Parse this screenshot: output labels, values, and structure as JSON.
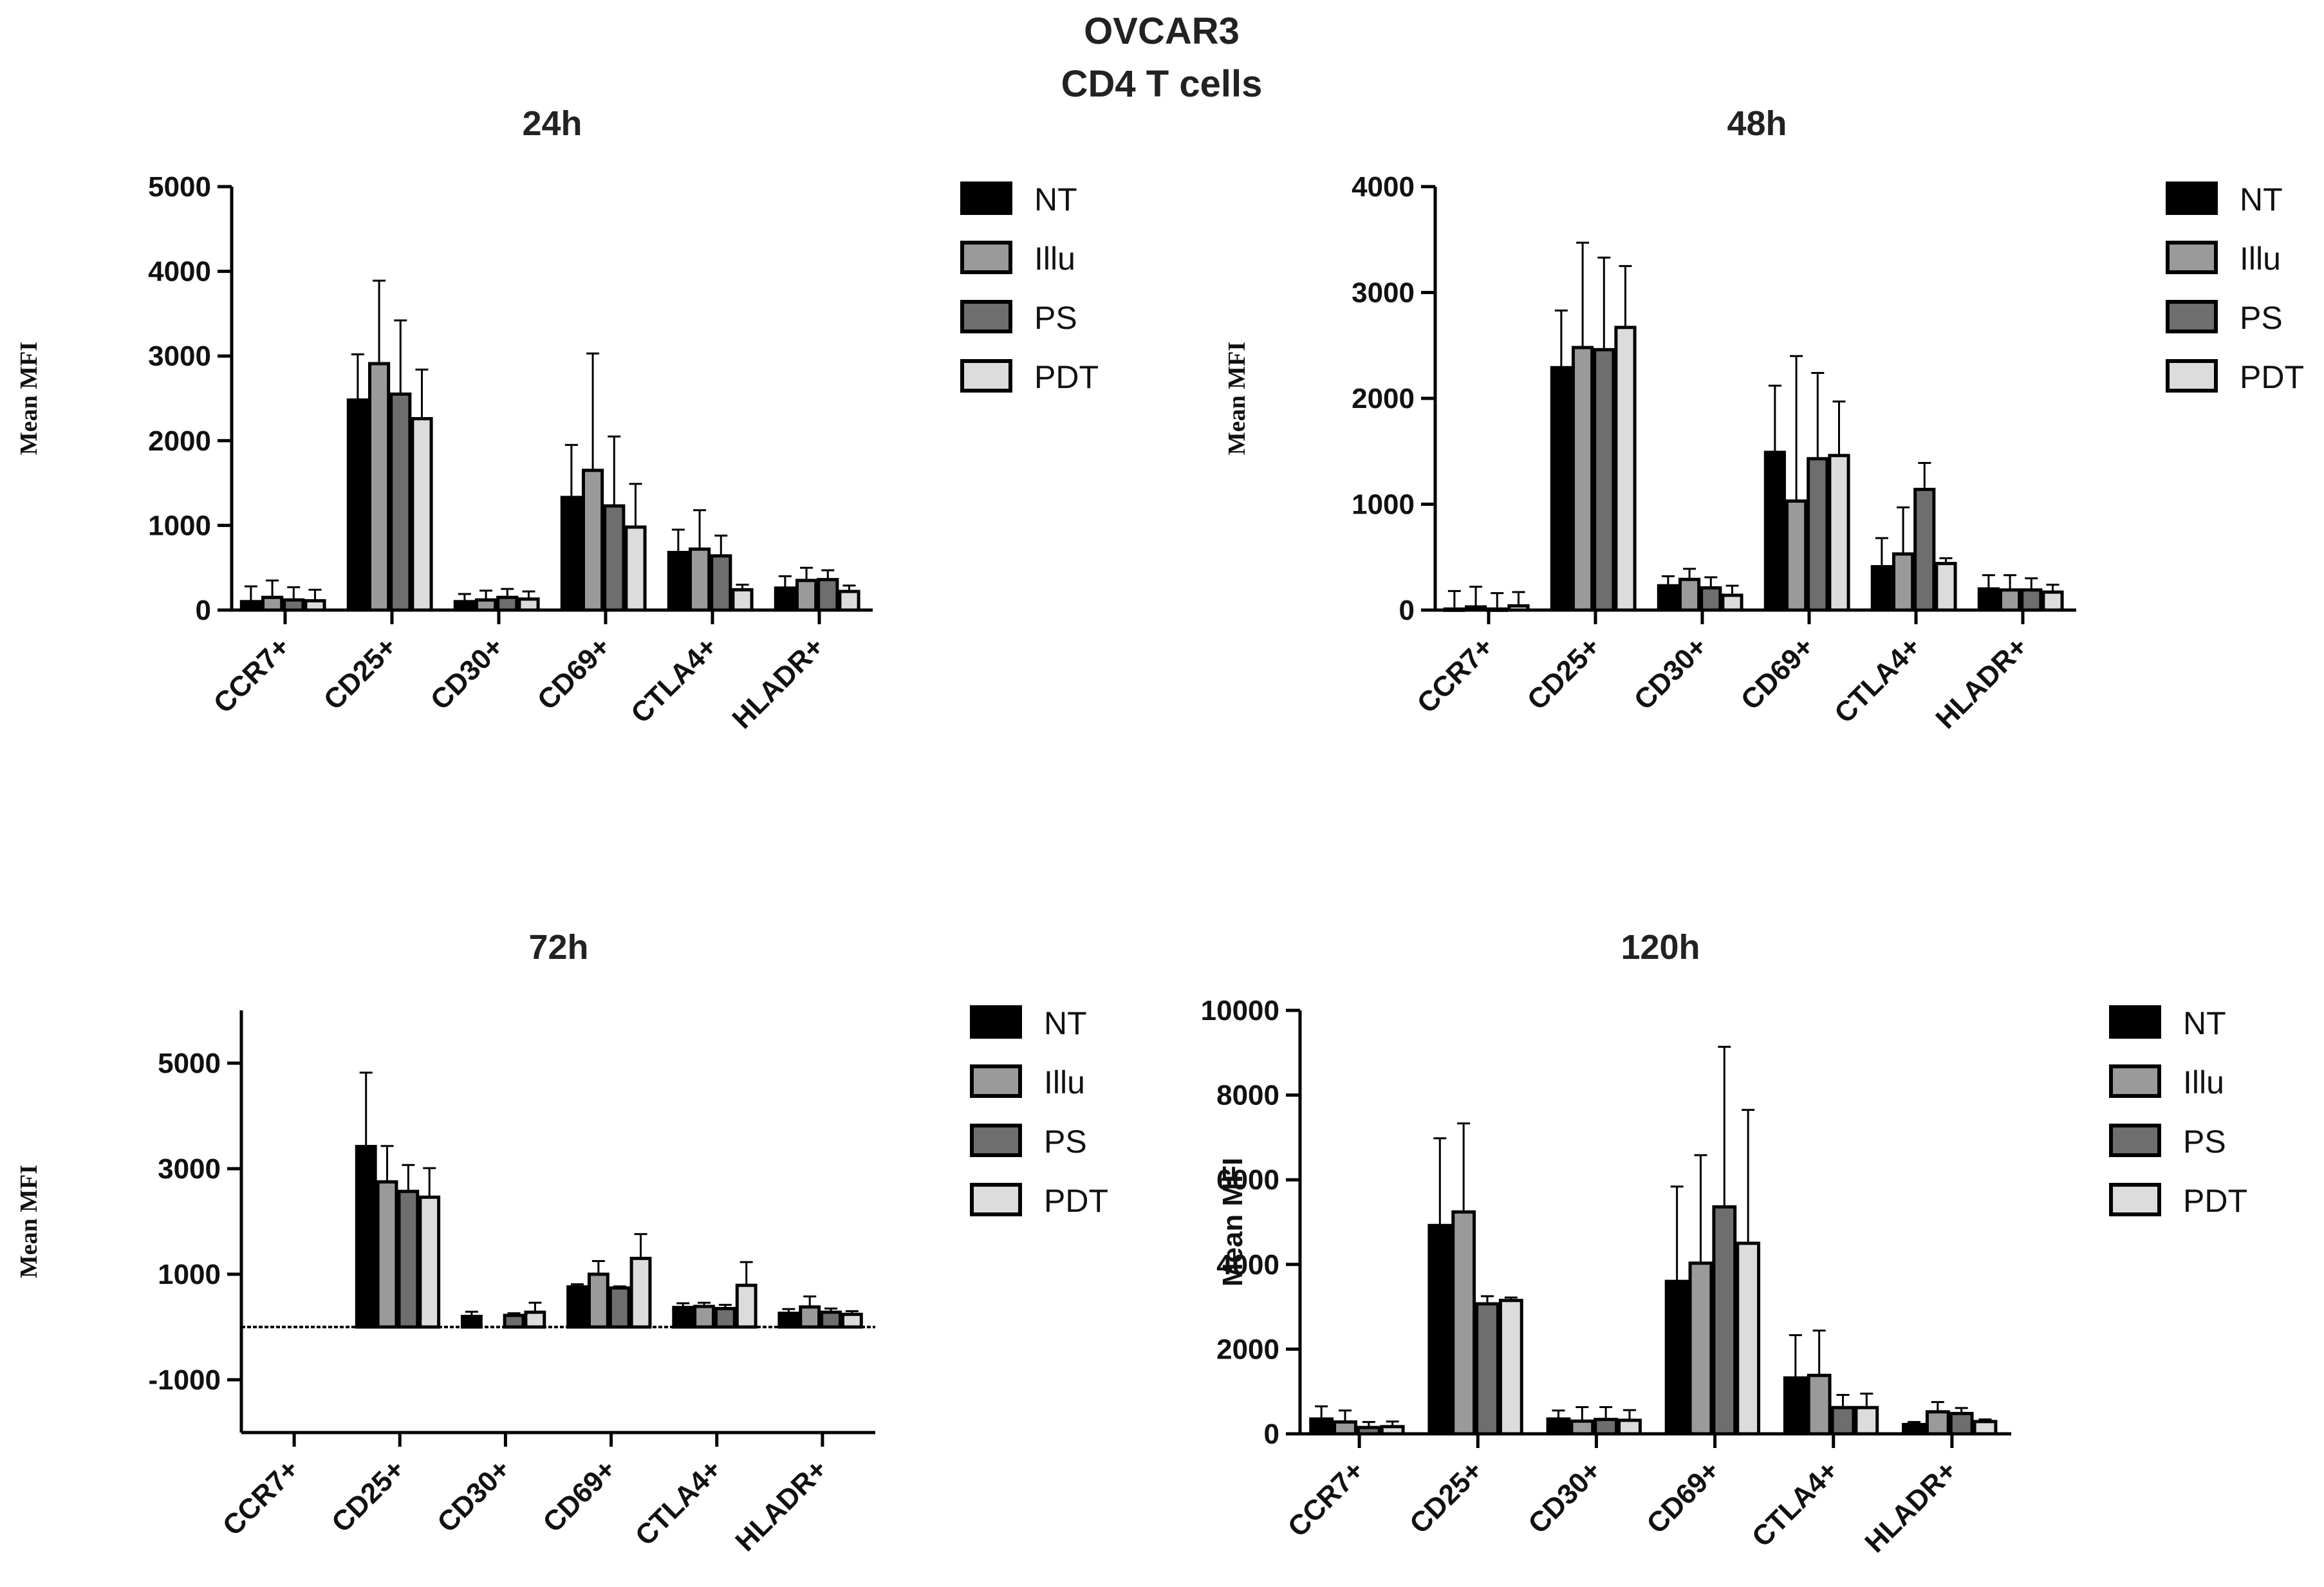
{
  "figure": {
    "title_line1": "OVCAR3",
    "title_line2": "CD4 T cells"
  },
  "legend_labels": [
    "NT",
    "Illu",
    "PS",
    "PDT"
  ],
  "colors": {
    "NT": "#000000",
    "Illu": "#9a9a9a",
    "PS": "#6e6e6e",
    "PDT": "#dcdcdc",
    "axis": "#000000"
  },
  "chart_data": [
    {
      "type": "bar",
      "title": "24h",
      "ylabel": "Mean MFI",
      "ylim": [
        0,
        5000
      ],
      "yticks": [
        0,
        1000,
        2000,
        3000,
        4000,
        5000
      ],
      "categories": [
        "CCR7+",
        "CD25+",
        "CD30+",
        "CD69+",
        "CTLA4+",
        "HLADR+"
      ],
      "series": [
        {
          "name": "NT",
          "values": [
            100,
            2480,
            100,
            1330,
            680,
            260
          ],
          "errors": [
            180,
            540,
            90,
            620,
            270,
            140
          ]
        },
        {
          "name": "Illu",
          "values": [
            150,
            2910,
            120,
            1650,
            720,
            350
          ],
          "errors": [
            200,
            980,
            110,
            1380,
            460,
            150
          ]
        },
        {
          "name": "PS",
          "values": [
            120,
            2550,
            150,
            1230,
            640,
            360
          ],
          "errors": [
            150,
            870,
            100,
            820,
            240,
            110
          ]
        },
        {
          "name": "PDT",
          "values": [
            110,
            2260,
            130,
            980,
            240,
            220
          ],
          "errors": [
            130,
            580,
            90,
            510,
            60,
            70
          ]
        }
      ]
    },
    {
      "type": "bar",
      "title": "48h",
      "ylabel": "Mean MFI",
      "ylim": [
        0,
        4000
      ],
      "yticks": [
        0,
        1000,
        2000,
        3000,
        4000
      ],
      "categories": [
        "CCR7+",
        "CD25+",
        "CD30+",
        "CD69+",
        "CTLA4+",
        "HLADR+"
      ],
      "series": [
        {
          "name": "NT",
          "values": [
            10,
            2290,
            230,
            1490,
            410,
            200
          ],
          "errors": [
            170,
            540,
            90,
            630,
            270,
            130
          ]
        },
        {
          "name": "Illu",
          "values": [
            30,
            2480,
            290,
            1030,
            530,
            190
          ],
          "errors": [
            190,
            990,
            100,
            1370,
            440,
            140
          ]
        },
        {
          "name": "PS",
          "values": [
            10,
            2460,
            210,
            1430,
            1140,
            190
          ],
          "errors": [
            150,
            870,
            100,
            810,
            250,
            110
          ]
        },
        {
          "name": "PDT",
          "values": [
            40,
            2670,
            140,
            1460,
            440,
            170
          ],
          "errors": [
            130,
            580,
            90,
            510,
            50,
            70
          ]
        }
      ]
    },
    {
      "type": "bar",
      "title": "72h",
      "ylabel": "Mean MFI",
      "ylim": [
        -2000,
        6000
      ],
      "yticks": [
        -1000,
        1000,
        3000,
        5000
      ],
      "categories": [
        "CCR7+",
        "CD25+",
        "CD30+",
        "CD69+",
        "CTLA4+",
        "HLADR+"
      ],
      "series": [
        {
          "name": "NT",
          "values": [
            0,
            3420,
            200,
            760,
            370,
            260
          ],
          "errors": [
            0,
            1400,
            90,
            50,
            80,
            80
          ]
        },
        {
          "name": "Illu",
          "values": [
            0,
            2750,
            0,
            1000,
            390,
            380
          ],
          "errors": [
            0,
            680,
            0,
            250,
            70,
            200
          ]
        },
        {
          "name": "PS",
          "values": [
            0,
            2570,
            220,
            740,
            350,
            280
          ],
          "errors": [
            0,
            500,
            40,
            30,
            70,
            70
          ]
        },
        {
          "name": "PDT",
          "values": [
            0,
            2460,
            280,
            1300,
            790,
            240
          ],
          "errors": [
            0,
            550,
            180,
            460,
            440,
            60
          ]
        }
      ]
    },
    {
      "type": "bar",
      "title": "120h",
      "ylabel": "Mean MFI",
      "ylim": [
        0,
        10000
      ],
      "yticks": [
        0,
        2000,
        4000,
        6000,
        8000,
        10000
      ],
      "categories": [
        "CCR7+",
        "CD25+",
        "CD30+",
        "CD69+",
        "CTLA4+",
        "HLADR+"
      ],
      "series": [
        {
          "name": "NT",
          "values": [
            350,
            4920,
            350,
            3600,
            1320,
            220
          ],
          "errors": [
            300,
            2060,
            200,
            2240,
            1010,
            60
          ]
        },
        {
          "name": "Illu",
          "values": [
            280,
            5240,
            300,
            4030,
            1380,
            520
          ],
          "errors": [
            270,
            2090,
            330,
            2550,
            1060,
            230
          ]
        },
        {
          "name": "PS",
          "values": [
            150,
            3070,
            340,
            5360,
            620,
            480
          ],
          "errors": [
            130,
            180,
            290,
            3780,
            300,
            130
          ]
        },
        {
          "name": "PDT",
          "values": [
            170,
            3150,
            320,
            4500,
            620,
            290
          ],
          "errors": [
            120,
            70,
            240,
            3150,
            330,
            50
          ]
        }
      ]
    }
  ]
}
